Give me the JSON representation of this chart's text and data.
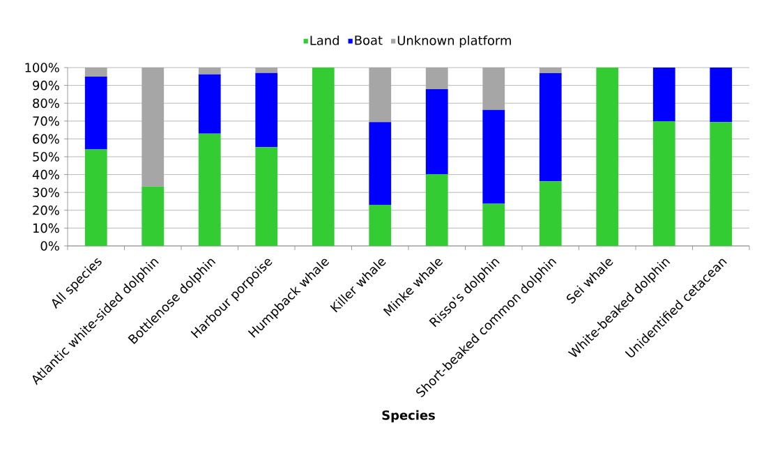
{
  "chart_data": {
    "type": "bar",
    "stacked": true,
    "xlabel": "Species",
    "categories": [
      "All species",
      "Atlantic white-sided dolphin",
      "Bottlenose dolphin",
      "Harbour porpoise",
      "Humpback whale",
      "Killer whale",
      "Minke whale",
      "Risso's dolphin",
      "Short-beaked common dolphin",
      "Sei whale",
      "White-beaked dolphin",
      "Unidentified cetacean"
    ],
    "series": [
      {
        "name": "Land",
        "color": "#33cc33",
        "values": [
          54.1,
          33.3,
          63.0,
          55.4,
          100,
          23.0,
          40.2,
          23.6,
          36.2,
          100,
          69.9,
          69.4
        ]
      },
      {
        "name": "Boat",
        "color": "#0000ff",
        "values": [
          40.8,
          0,
          33.2,
          41.6,
          0,
          46.4,
          47.7,
          52.7,
          60.7,
          0,
          30.1,
          30.6
        ]
      },
      {
        "name": "Unknown platform",
        "color": "#a6a6a6",
        "values": [
          5.1,
          66.7,
          3.8,
          3.0,
          0,
          30.6,
          12.1,
          23.7,
          3.1,
          0,
          0,
          0
        ]
      }
    ],
    "ylim": [
      0,
      100
    ],
    "yticks": [
      {
        "value": 0,
        "label": "0%"
      },
      {
        "value": 10,
        "label": "10%"
      },
      {
        "value": 20,
        "label": "20%"
      },
      {
        "value": 30,
        "label": "30%"
      },
      {
        "value": 40,
        "label": "40%"
      },
      {
        "value": 50,
        "label": "50%"
      },
      {
        "value": 60,
        "label": "60%"
      },
      {
        "value": 70,
        "label": "70%"
      },
      {
        "value": 80,
        "label": "80%"
      },
      {
        "value": 90,
        "label": "90%"
      },
      {
        "value": 100,
        "label": "100%"
      }
    ],
    "grid": "y",
    "legend": "top"
  }
}
